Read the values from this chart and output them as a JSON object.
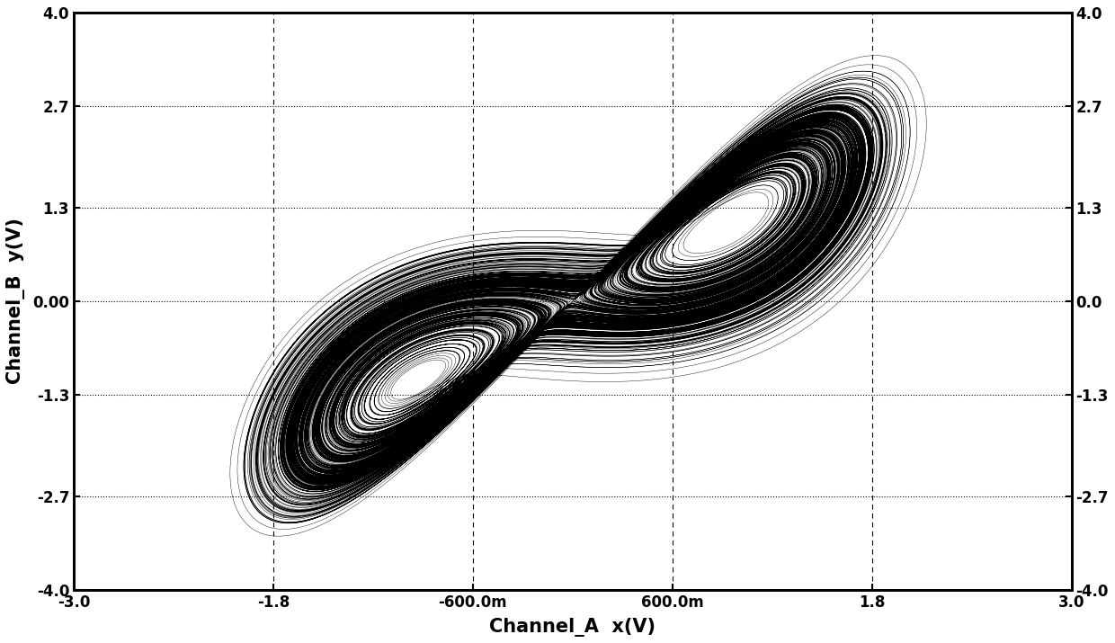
{
  "title": "",
  "xlabel": "Channel_A  x(V)",
  "ylabel": "Channel_B  y(V)",
  "xlim": [
    -3.0,
    3.0
  ],
  "ylim": [
    -4.0,
    4.0
  ],
  "xticks": [
    -3.0,
    -1.8,
    -0.6,
    0.6,
    1.8,
    3.0
  ],
  "xtick_labels": [
    "-3.0",
    "-1.8",
    "-600.0m",
    "600.0m",
    "1.8",
    "3.0"
  ],
  "yticks": [
    -4.0,
    -2.7,
    -1.3,
    0.0,
    1.3,
    2.7,
    4.0
  ],
  "ytick_labels_left": [
    "-4.0",
    "-2.7",
    "-1.3",
    "0.00",
    "1.3",
    "2.7",
    "4.0"
  ],
  "ytick_labels_right": [
    "-4.0",
    "-2.7",
    "-1.3",
    "0.0",
    "1.3",
    "2.7",
    "4.0"
  ],
  "grid_color": "#000000",
  "line_color": "#000000",
  "background_color": "#ffffff"
}
